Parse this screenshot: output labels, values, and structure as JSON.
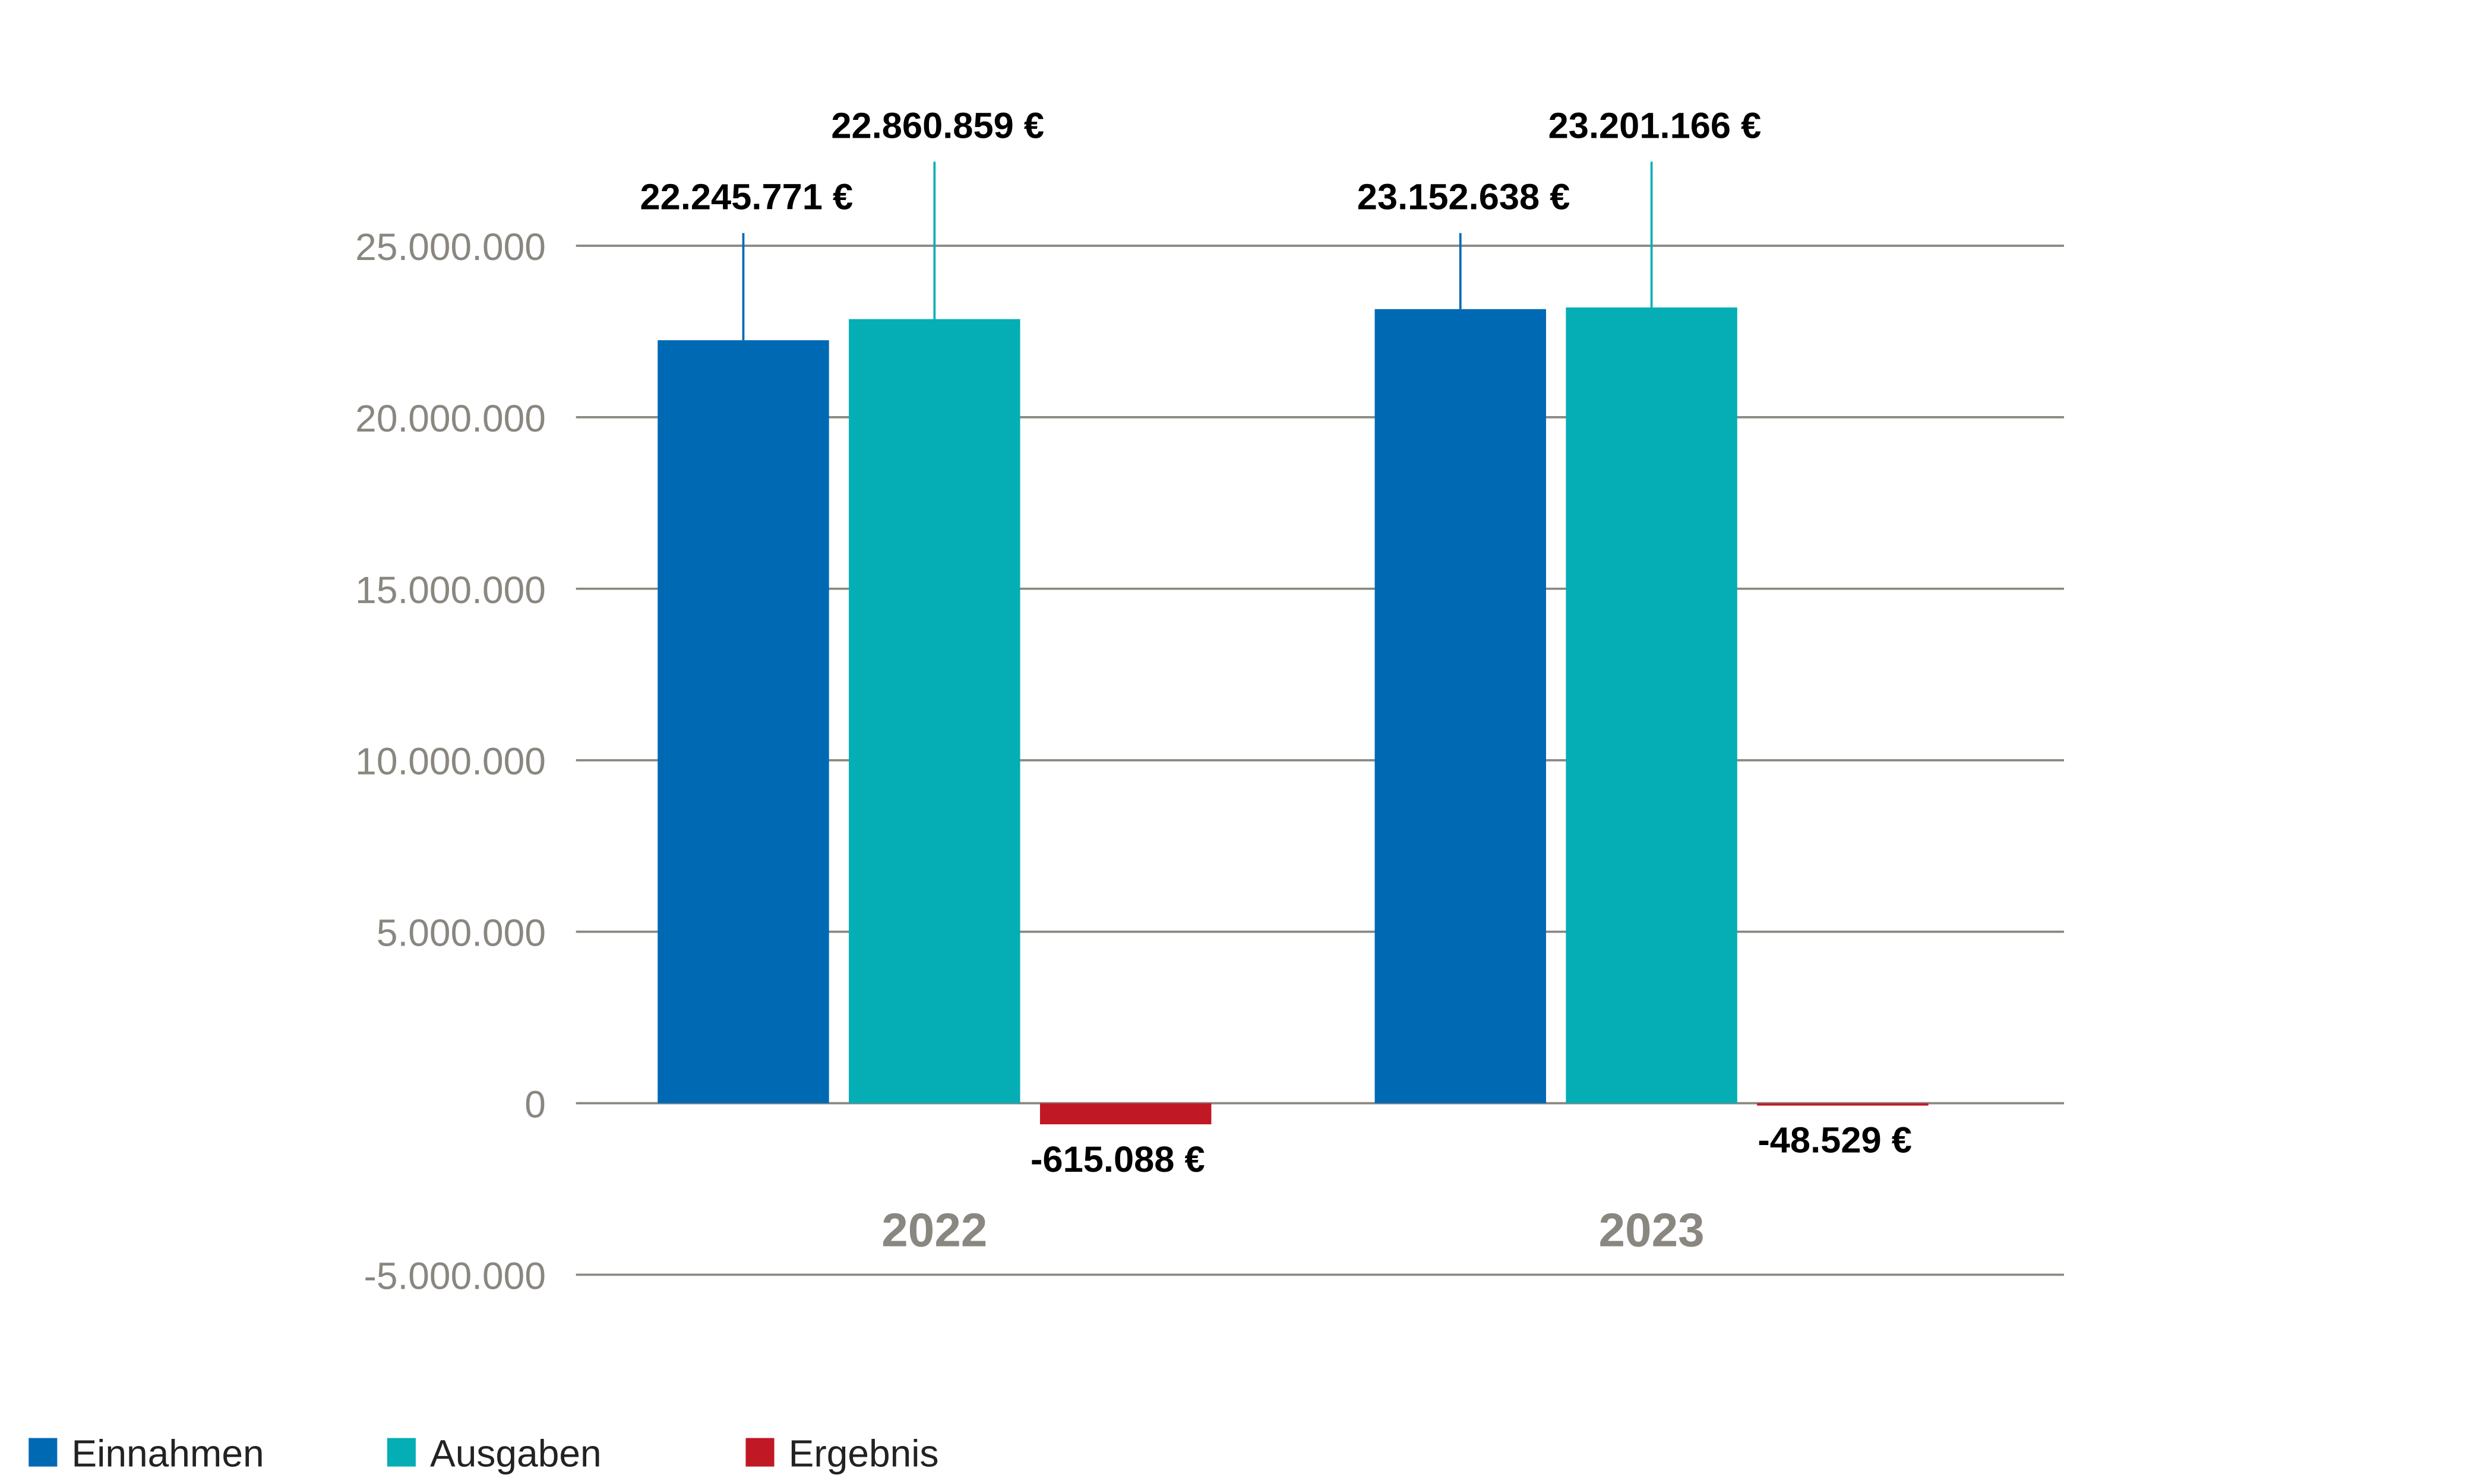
{
  "chart_data": {
    "type": "bar",
    "title": "",
    "xlabel": "",
    "ylabel": "",
    "categories": [
      "2022",
      "2023"
    ],
    "ylim": [
      -5000000,
      25000000
    ],
    "yticks": [
      25000000,
      20000000,
      15000000,
      10000000,
      5000000,
      0,
      -5000000
    ],
    "ytick_labels": [
      "25.000.000",
      "20.000.000",
      "15.000.000",
      "10.000.000",
      "5.000.000",
      "0",
      "-5.000.000"
    ],
    "grid": true,
    "legend_position": "bottom-left",
    "series": [
      {
        "name": "Einnahmen",
        "color": "#0069b4",
        "values": [
          22245771,
          23152638
        ],
        "labels": [
          "22.245.771 €",
          "23.152.638 €"
        ]
      },
      {
        "name": "Ausgaben",
        "color": "#05aeb4",
        "values": [
          22860859,
          23201166
        ],
        "labels": [
          "22.860.859 €",
          "23.201.166 €"
        ]
      },
      {
        "name": "Ergebnis",
        "color": "#c01824",
        "values": [
          -615088,
          -48529
        ],
        "labels": [
          "-615.088 €",
          "-48.529 €"
        ]
      }
    ]
  }
}
